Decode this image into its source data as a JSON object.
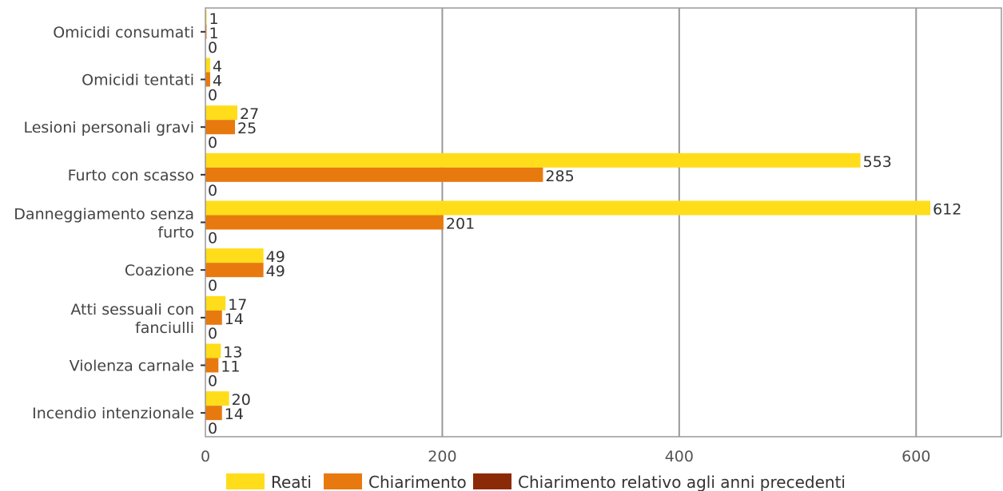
{
  "chart_data": {
    "type": "bar",
    "orientation": "horizontal",
    "categories": [
      "Omicidi consumati",
      "Omicidi tentati",
      "Lesioni personali gravi",
      "Furto con scasso",
      "Danneggiamento senza furto",
      "Coazione",
      "Atti sessuali con fanciulli",
      "Violenza carnale",
      "Incendio intenzionale"
    ],
    "series": [
      {
        "name": "Reati",
        "color": "#FFDD1A",
        "values": [
          1,
          4,
          27,
          553,
          612,
          49,
          17,
          13,
          20
        ]
      },
      {
        "name": "Chiarimento",
        "color": "#E8790F",
        "values": [
          1,
          4,
          25,
          285,
          201,
          49,
          14,
          11,
          14
        ]
      },
      {
        "name": "Chiarimento relativo agli anni precedenti",
        "color": "#8B2A07",
        "values": [
          0,
          0,
          0,
          0,
          0,
          0,
          0,
          0,
          0
        ]
      }
    ],
    "xlim": [
      0,
      672
    ],
    "xticks": [
      "0",
      "200",
      "400",
      "600"
    ],
    "xtick_values": [
      0,
      200,
      400,
      600
    ],
    "grid": "vertical major",
    "legend_position": "bottom"
  }
}
